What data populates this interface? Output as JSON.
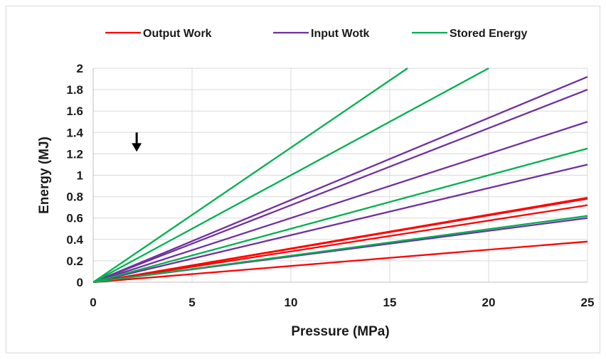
{
  "chart_data": {
    "type": "line",
    "title": "",
    "xlabel": "Pressure (MPa)",
    "ylabel": "Energy (MJ)",
    "xlim": [
      0,
      25
    ],
    "ylim": [
      0,
      2
    ],
    "xticks": [
      "0",
      "5",
      "10",
      "15",
      "20",
      "25"
    ],
    "yticks": [
      "0",
      "0.2",
      "0.4",
      "0.6",
      "0.8",
      "1",
      "1.2",
      "1.4",
      "1.6",
      "1.8",
      "2"
    ],
    "grid": true,
    "legend_position": "top",
    "legend": [
      {
        "name": "Output Work",
        "color": "#ff0000"
      },
      {
        "name": "Input Wotk",
        "color": "#7030a0"
      },
      {
        "name": "Stored Energy",
        "color": "#00b050"
      }
    ],
    "series": [
      {
        "group": "Output Work",
        "color": "#ff0000",
        "x": [
          0,
          25
        ],
        "y": [
          0,
          0.38
        ]
      },
      {
        "group": "Output Work",
        "color": "#ff0000",
        "x": [
          0,
          25
        ],
        "y": [
          0,
          0.72
        ]
      },
      {
        "group": "Output Work",
        "color": "#ff0000",
        "x": [
          0,
          25
        ],
        "y": [
          0,
          0.78
        ]
      },
      {
        "group": "Output Work",
        "color": "#ff0000",
        "x": [
          0,
          25
        ],
        "y": [
          0,
          0.79
        ]
      },
      {
        "group": "Input Wotk",
        "color": "#7030a0",
        "x": [
          0,
          25
        ],
        "y": [
          0,
          0.6
        ]
      },
      {
        "group": "Input Wotk",
        "color": "#7030a0",
        "x": [
          0,
          25
        ],
        "y": [
          0,
          1.1
        ]
      },
      {
        "group": "Input Wotk",
        "color": "#7030a0",
        "x": [
          0,
          25
        ],
        "y": [
          0,
          1.5
        ]
      },
      {
        "group": "Input Wotk",
        "color": "#7030a0",
        "x": [
          0,
          25
        ],
        "y": [
          0,
          1.8
        ]
      },
      {
        "group": "Input Wotk",
        "color": "#7030a0",
        "x": [
          0,
          25
        ],
        "y": [
          0,
          1.92
        ]
      },
      {
        "group": "Stored Energy",
        "color": "#00b050",
        "x": [
          0,
          25
        ],
        "y": [
          0,
          0.62
        ]
      },
      {
        "group": "Stored Energy",
        "color": "#00b050",
        "x": [
          0,
          25
        ],
        "y": [
          0,
          1.25
        ]
      },
      {
        "group": "Stored Energy",
        "color": "#00b050",
        "x": [
          0,
          20
        ],
        "y": [
          0,
          2.0
        ]
      },
      {
        "group": "Stored Energy",
        "color": "#00b050",
        "x": [
          0,
          15.9
        ],
        "y": [
          0,
          2.0
        ]
      }
    ],
    "annotations": [
      {
        "type": "arrow-down",
        "x": 2.2,
        "y_top": 1.4,
        "y_bottom": 1.22
      }
    ]
  }
}
